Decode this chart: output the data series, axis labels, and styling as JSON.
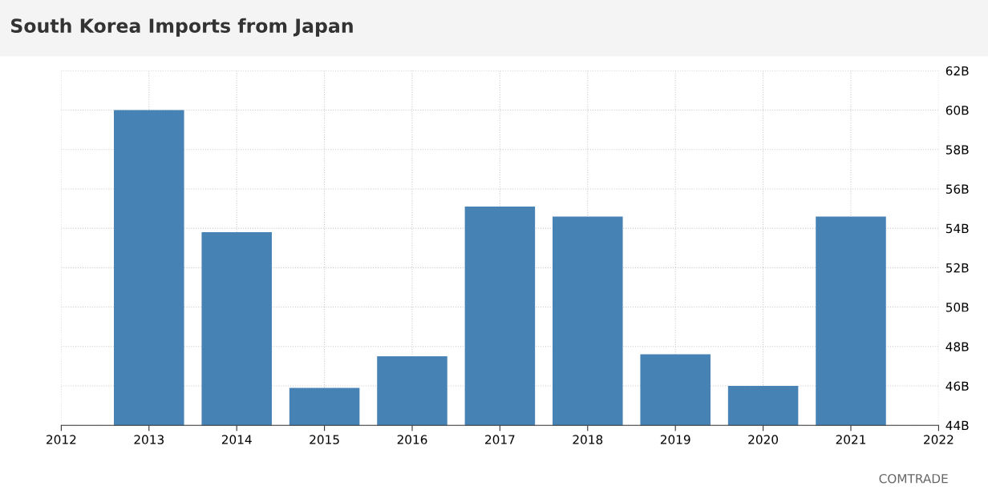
{
  "chart_data": {
    "type": "bar",
    "title": "South Korea Imports from Japan",
    "x": [
      2013,
      2014,
      2015,
      2016,
      2017,
      2018,
      2019,
      2020,
      2021
    ],
    "values": [
      60.0,
      53.8,
      45.9,
      47.5,
      55.1,
      54.6,
      47.6,
      46.0,
      54.6
    ],
    "color": "#4682b4",
    "xlim": [
      2012,
      2022
    ],
    "xticks": [
      2012,
      2013,
      2014,
      2015,
      2016,
      2017,
      2018,
      2019,
      2020,
      2021,
      2022
    ],
    "ylim": [
      44,
      62
    ],
    "yticks": [
      {
        "value": 44,
        "label": "44B"
      },
      {
        "value": 46,
        "label": "46B"
      },
      {
        "value": 48,
        "label": "48B"
      },
      {
        "value": 50,
        "label": "50B"
      },
      {
        "value": 52,
        "label": "52B"
      },
      {
        "value": 54,
        "label": "54B"
      },
      {
        "value": 56,
        "label": "56B"
      },
      {
        "value": 58,
        "label": "58B"
      },
      {
        "value": 60,
        "label": "60B"
      },
      {
        "value": 62,
        "label": "62B"
      }
    ],
    "grid": true,
    "annotations": [
      "COMTRADE"
    ]
  }
}
